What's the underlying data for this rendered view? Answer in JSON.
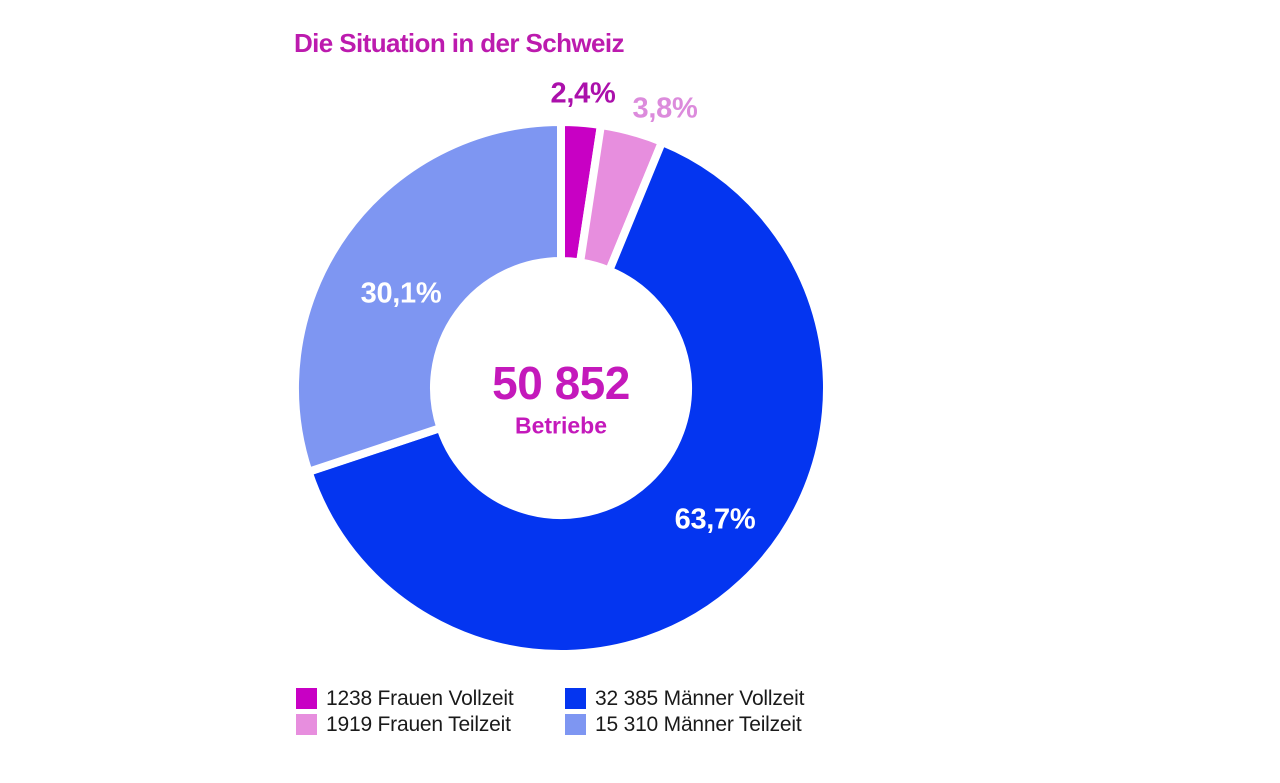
{
  "title": "Die Situation in der Schweiz",
  "chart_data": {
    "type": "pie",
    "donut": true,
    "title": "Die Situation in der Schweiz",
    "center_value": "50 852",
    "center_label": "Betriebe",
    "start_angle_deg": 0,
    "direction": "clockwise",
    "legend_position": "bottom",
    "slices": [
      {
        "name": "Frauen Vollzeit",
        "count": 1238,
        "percent": 2.4,
        "percent_label": "2,4%",
        "color": "#C800C4",
        "label_color": "#AB10AB"
      },
      {
        "name": "Frauen Teilzeit",
        "count": 1919,
        "percent": 3.8,
        "percent_label": "3,8%",
        "color": "#E78EDE",
        "label_color": "#DC8BDC"
      },
      {
        "name": "Männer Vollzeit",
        "count": 32385,
        "percent": 63.7,
        "percent_label": "63,7%",
        "color": "#0435F0",
        "label_color": "#FFFFFF"
      },
      {
        "name": "Männer Teilzeit",
        "count": 15310,
        "percent": 30.1,
        "percent_label": "30,1%",
        "color": "#7E96F2",
        "label_color": "#FFFFFF"
      }
    ]
  },
  "legend": {
    "items": [
      {
        "label": "1238 Frauen Vollzeit",
        "color": "#C800C4"
      },
      {
        "label": "1919 Frauen Teilzeit",
        "color": "#E78EDE"
      },
      {
        "label": "32 385 Männer Vollzeit",
        "color": "#0435F0"
      },
      {
        "label": "15 310 Männer Teilzeit",
        "color": "#7E96F2"
      }
    ]
  },
  "colors": {
    "title": "#BC1BAE",
    "center_text": "#C419BB",
    "legend_text": "#1A1A1A",
    "background": "#FFFFFF",
    "segment_gap": "#FFFFFF"
  }
}
